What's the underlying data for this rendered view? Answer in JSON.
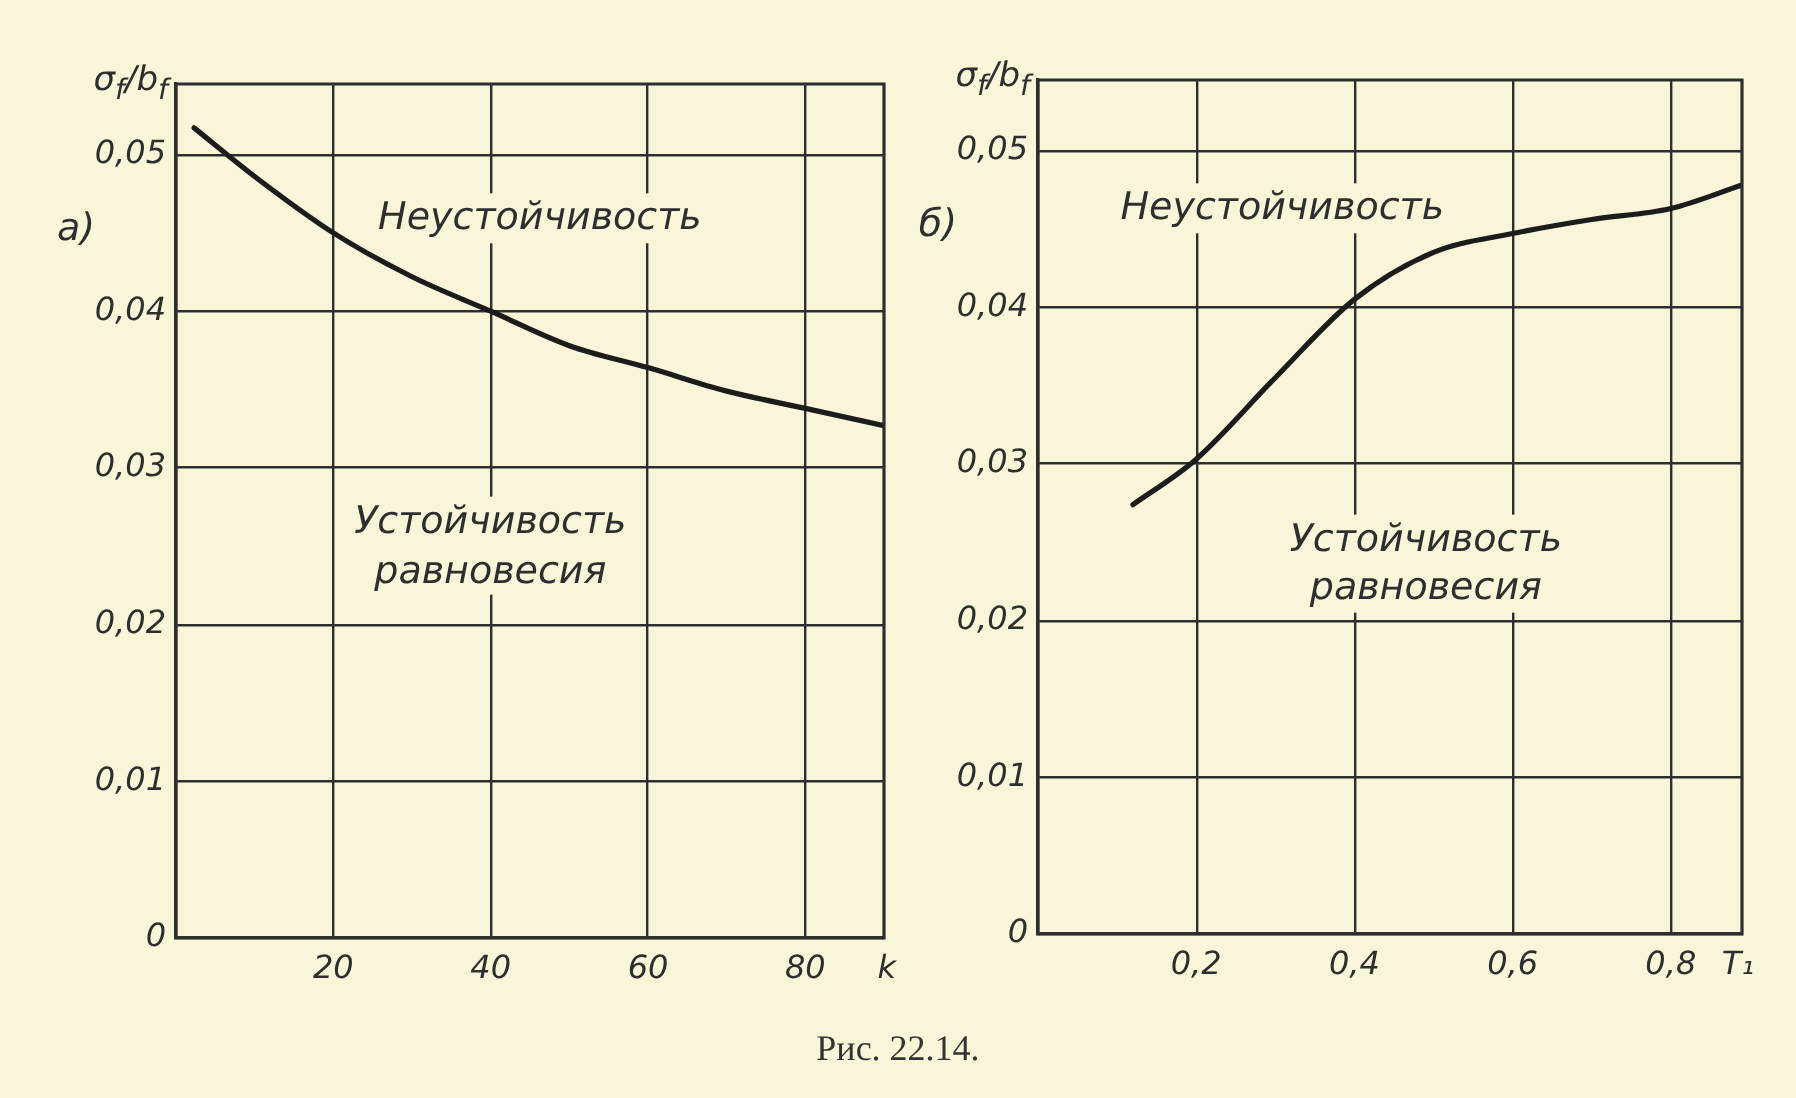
{
  "chart_data": [
    {
      "type": "line",
      "title": "а)",
      "xlabel": "k",
      "ylabel": "σ$_{f}$/b$_{f}$",
      "x": [
        2.3,
        10,
        20,
        30,
        40,
        50,
        60,
        70,
        80,
        90
      ],
      "values": [
        0.0517,
        0.0486,
        0.045,
        0.0422,
        0.04,
        0.0378,
        0.0364,
        0.0349,
        0.0338,
        0.0327
      ],
      "color": "#1c1c1c",
      "xlim": [
        0,
        90
      ],
      "ylim": [
        0,
        0.0545
      ],
      "xticks": [
        20,
        40,
        60,
        80
      ],
      "yticks": [
        0,
        {
          "value": 0.01,
          "label": "0,01"
        },
        {
          "value": 0.02,
          "label": "0,02"
        },
        {
          "value": 0.03,
          "label": "0,03"
        },
        {
          "value": 0.04,
          "label": "0,04"
        },
        {
          "value": 0.05,
          "label": "0,05"
        }
      ],
      "grid": true,
      "annotations": [
        "Неустойчивость",
        "Устойчивость\nравновесия",
        "Рис. 22.14."
      ]
    },
    {
      "type": "line",
      "title": "б)",
      "xlabel": "T₁",
      "ylabel": "σ$_{f}$/b$_{f}$",
      "x": [
        0.12,
        0.2,
        0.3,
        0.4,
        0.5,
        0.6,
        0.7,
        0.8,
        0.89
      ],
      "values": [
        0.0274,
        0.0303,
        0.0355,
        0.0405,
        0.0435,
        0.0447,
        0.0456,
        0.0463,
        0.0478
      ],
      "color": "#1c1c1c",
      "xlim": [
        0,
        0.89
      ],
      "ylim": [
        0,
        0.0545
      ],
      "xticks": [
        {
          "value": 0.2,
          "label": "0,2"
        },
        {
          "value": 0.4,
          "label": "0,4"
        },
        {
          "value": 0.6,
          "label": "0,6"
        },
        {
          "value": 0.8,
          "label": "0,8"
        }
      ],
      "yticks": [
        0,
        {
          "value": 0.01,
          "label": "0,01"
        },
        {
          "value": 0.02,
          "label": "0,02"
        },
        {
          "value": 0.03,
          "label": "0,03"
        },
        {
          "value": 0.04,
          "label": "0,04"
        },
        {
          "value": 0.05,
          "label": "0,05"
        }
      ],
      "grid": true,
      "annotations": [
        "Неустойчивость",
        "Устойчивость\nравновесия"
      ]
    }
  ]
}
